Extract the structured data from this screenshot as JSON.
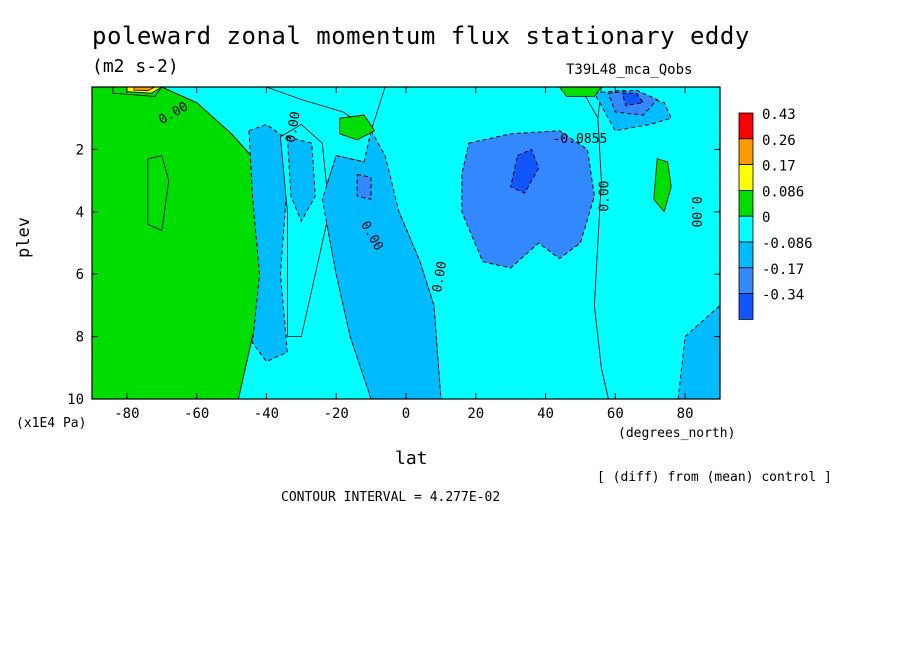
{
  "chart_data": {
    "type": "heatmap",
    "title": "poleward zonal momentum flux stationary eddy",
    "units": "(m2 s-2)",
    "run_label": "T39L48_mca_Qobs",
    "xlabel": "lat",
    "x_unit_label": "(degrees_north)",
    "ylabel": "plev",
    "y_unit_label": "(x1E4 Pa)",
    "note": "[ (diff) from (mean) control ]",
    "contour_interval_label": "CONTOUR INTERVAL = 4.277E-02",
    "xlim": [
      -90,
      90
    ],
    "ylim": [
      10,
      0
    ],
    "x_ticks": [
      -80,
      -60,
      -40,
      -20,
      0,
      20,
      40,
      60,
      80
    ],
    "y_ticks": [
      2,
      4,
      6,
      8,
      10
    ],
    "colorbar": {
      "levels": [
        "0.43",
        "0.26",
        "0.17",
        "0.086",
        "0",
        "-0.086",
        "-0.17",
        "-0.34"
      ],
      "colors": [
        "#ff0000",
        "#ff9900",
        "#ffff00",
        "#00dd00",
        "#00ffff",
        "#00bbff",
        "#3388ff",
        "#1155ff"
      ]
    },
    "contour_labels": [
      "0.00",
      "0.00",
      "0.00",
      "0.00",
      "0.00",
      "0.00",
      "-0.0855"
    ],
    "regions": [
      {
        "category": "0.086",
        "points": [
          [
            -90,
            0
          ],
          [
            -70,
            0
          ],
          [
            -60,
            0.5
          ],
          [
            -50,
            1.5
          ],
          [
            -42,
            2.5
          ],
          [
            -38,
            4.5
          ],
          [
            -40,
            6.5
          ],
          [
            -44,
            8
          ],
          [
            -48,
            10
          ],
          [
            -90,
            10
          ]
        ]
      },
      {
        "category": "0",
        "points": [
          [
            -70,
            0
          ],
          [
            -40,
            0
          ],
          [
            -30,
            0.4
          ],
          [
            -18,
            0.8
          ],
          [
            -10,
            1.4
          ],
          [
            -6,
            2.2
          ],
          [
            -12,
            2.4
          ],
          [
            -20,
            2.2
          ],
          [
            -24,
            3.6
          ],
          [
            -20,
            6
          ],
          [
            -16,
            8
          ],
          [
            -10,
            10
          ],
          [
            -48,
            10
          ],
          [
            -44,
            8
          ],
          [
            -40,
            6.5
          ],
          [
            -38,
            4.5
          ],
          [
            -42,
            2.5
          ],
          [
            -50,
            1.5
          ],
          [
            -60,
            0.5
          ]
        ]
      },
      {
        "category": "-0.086",
        "points": [
          [
            -45,
            1.4
          ],
          [
            -40,
            1.2
          ],
          [
            -35,
            1.6
          ],
          [
            -34,
            3
          ],
          [
            -36,
            6
          ],
          [
            -34,
            8.5
          ],
          [
            -40,
            8.8
          ],
          [
            -44,
            8.2
          ],
          [
            -42,
            6
          ],
          [
            -44,
            3.5
          ]
        ]
      },
      {
        "category": "0",
        "points": [
          [
            -36,
            1.6
          ],
          [
            -30,
            1.2
          ],
          [
            -24,
            1.8
          ],
          [
            -22,
            4
          ],
          [
            -26,
            6
          ],
          [
            -30,
            8
          ],
          [
            -34,
            8
          ],
          [
            -34,
            4
          ]
        ]
      },
      {
        "category": "-0.086",
        "points": [
          [
            -34,
            1.6
          ],
          [
            -27,
            1.8
          ],
          [
            -26,
            3.5
          ],
          [
            -30,
            4.3
          ],
          [
            -33,
            3.5
          ]
        ]
      },
      {
        "category": "0",
        "points": [
          [
            -6,
            0
          ],
          [
            50,
            0
          ],
          [
            55,
            1
          ],
          [
            56,
            3
          ],
          [
            55,
            5
          ],
          [
            54,
            7
          ],
          [
            56,
            9
          ],
          [
            58,
            10
          ],
          [
            10,
            10
          ],
          [
            8,
            7
          ],
          [
            4,
            5.6
          ],
          [
            -2,
            4
          ],
          [
            -8,
            2.8
          ],
          [
            -10,
            1.4
          ]
        ]
      },
      {
        "category": "-0.086",
        "points": [
          [
            -10,
            1.4
          ],
          [
            -6,
            2.2
          ],
          [
            -2,
            4
          ],
          [
            4,
            5.6
          ],
          [
            8,
            7
          ],
          [
            10,
            10
          ],
          [
            -10,
            10
          ],
          [
            -16,
            8
          ],
          [
            -20,
            6
          ],
          [
            -24,
            3.6
          ],
          [
            -20,
            2.2
          ],
          [
            -12,
            2.4
          ]
        ]
      },
      {
        "category": "-0.17",
        "points": [
          [
            18,
            1.8
          ],
          [
            30,
            1.5
          ],
          [
            44,
            1.4
          ],
          [
            52,
            2
          ],
          [
            54,
            3.5
          ],
          [
            50,
            5
          ],
          [
            44,
            5.5
          ],
          [
            38,
            5
          ],
          [
            30,
            5.8
          ],
          [
            22,
            5.6
          ],
          [
            16,
            4
          ],
          [
            16,
            2.8
          ]
        ]
      },
      {
        "category": "-0.34",
        "points": [
          [
            32,
            2.2
          ],
          [
            36,
            2
          ],
          [
            38,
            2.6
          ],
          [
            34,
            3.4
          ],
          [
            30,
            3.2
          ]
        ]
      },
      {
        "category": "-0.17",
        "points": [
          [
            -14,
            2.8
          ],
          [
            -10,
            2.9
          ],
          [
            -10,
            3.6
          ],
          [
            -14,
            3.5
          ]
        ]
      },
      {
        "category": "0",
        "points": [
          [
            56,
            0
          ],
          [
            90,
            0
          ],
          [
            90,
            10
          ],
          [
            58,
            10
          ],
          [
            56,
            9
          ],
          [
            54,
            7
          ],
          [
            55,
            5
          ],
          [
            56,
            3
          ],
          [
            55,
            1
          ]
        ]
      },
      {
        "category": "-0.086",
        "points": [
          [
            54,
            0.2
          ],
          [
            62,
            0.1
          ],
          [
            74,
            0.5
          ],
          [
            76,
            1
          ],
          [
            70,
            1.2
          ],
          [
            60,
            1.4
          ]
        ]
      },
      {
        "category": "-0.17",
        "points": [
          [
            58,
            0.2
          ],
          [
            66,
            0.1
          ],
          [
            72,
            0.4
          ],
          [
            68,
            0.9
          ],
          [
            60,
            0.8
          ]
        ]
      },
      {
        "category": "-0.34",
        "points": [
          [
            62,
            0.2
          ],
          [
            66,
            0.2
          ],
          [
            68,
            0.5
          ],
          [
            63,
            0.6
          ]
        ]
      },
      {
        "category": "-0.086",
        "points": [
          [
            80,
            8
          ],
          [
            90,
            7
          ],
          [
            90,
            10
          ],
          [
            78,
            10
          ]
        ]
      },
      {
        "category": "0.086",
        "points": [
          [
            -74,
            2.3
          ],
          [
            -70,
            2.2
          ],
          [
            -68,
            3
          ],
          [
            -70,
            4.6
          ],
          [
            -74,
            4.4
          ]
        ]
      },
      {
        "category": "0.086",
        "points": [
          [
            -19,
            1.0
          ],
          [
            -12,
            0.9
          ],
          [
            -9,
            1.4
          ],
          [
            -14,
            1.7
          ],
          [
            -19,
            1.5
          ]
        ]
      },
      {
        "category": "0.086",
        "points": [
          [
            72,
            2.3
          ],
          [
            75,
            2.4
          ],
          [
            76,
            3.2
          ],
          [
            74,
            4
          ],
          [
            71,
            3.6
          ]
        ]
      },
      {
        "category": "0.086",
        "points": [
          [
            -84,
            0
          ],
          [
            -70,
            0
          ],
          [
            -72,
            0.3
          ],
          [
            -84,
            0.2
          ]
        ]
      },
      {
        "category": "0.17",
        "points": [
          [
            -80,
            0
          ],
          [
            -70,
            0
          ],
          [
            -73,
            0.2
          ],
          [
            -80,
            0.15
          ]
        ]
      },
      {
        "category": "0.26",
        "points": [
          [
            -78,
            0
          ],
          [
            -72,
            0
          ],
          [
            -74,
            0.12
          ],
          [
            -78,
            0.1
          ]
        ]
      },
      {
        "category": "0.086",
        "points": [
          [
            44,
            0
          ],
          [
            56,
            0
          ],
          [
            54,
            0.3
          ],
          [
            46,
            0.3
          ]
        ]
      }
    ]
  }
}
